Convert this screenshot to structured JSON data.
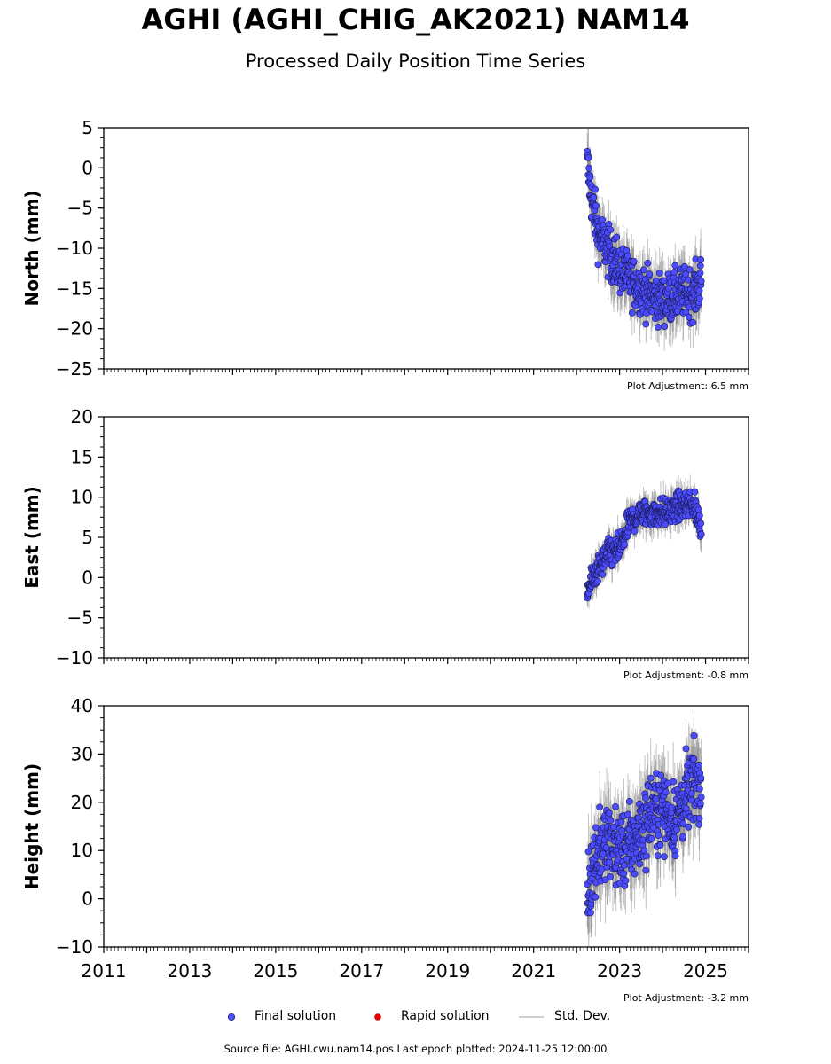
{
  "title": "AGHI (AGHI_CHIG_AK2021) NAM14",
  "subtitle": "Processed Daily Position Time Series",
  "source": "Source file: AGHI.cwu.nam14.pos  Last epoch plotted: 2024-11-25 12:00:00",
  "legend": {
    "final": "Final solution",
    "rapid": "Rapid solution",
    "std": "Std. Dev."
  },
  "colors": {
    "final": "#4b4bff",
    "rapid": "#e00000",
    "std": "#c0c0c0"
  },
  "chart_data": [
    {
      "type": "scatter",
      "ylabel": "North (mm)",
      "ylim": [
        -25,
        5
      ],
      "yticks": [
        5,
        0,
        -5,
        -10,
        -15,
        -20,
        -25
      ],
      "xlim": [
        2011,
        2026
      ],
      "adjustment": "Plot Adjustment: 6.5 mm",
      "series": [
        {
          "name": "Final solution",
          "points": [
            [
              2022.25,
              0.5
            ],
            [
              2022.35,
              -4
            ],
            [
              2022.5,
              -8
            ],
            [
              2022.75,
              -10.5
            ],
            [
              2023.0,
              -12.5
            ],
            [
              2023.25,
              -14
            ],
            [
              2023.5,
              -15
            ],
            [
              2023.75,
              -16
            ],
            [
              2024.0,
              -16.5
            ],
            [
              2024.25,
              -16
            ],
            [
              2024.5,
              -15.5
            ],
            [
              2024.75,
              -15.5
            ],
            [
              2024.9,
              -14
            ]
          ]
        }
      ]
    },
    {
      "type": "scatter",
      "ylabel": "East (mm)",
      "ylim": [
        -10,
        20
      ],
      "yticks": [
        20,
        15,
        10,
        5,
        0,
        -5,
        -10
      ],
      "xlim": [
        2011,
        2026
      ],
      "adjustment": "Plot Adjustment: -0.8 mm",
      "series": [
        {
          "name": "Final solution",
          "points": [
            [
              2022.25,
              -1.5
            ],
            [
              2022.5,
              1
            ],
            [
              2022.75,
              3
            ],
            [
              2023.0,
              3.5
            ],
            [
              2023.1,
              5
            ],
            [
              2023.25,
              7
            ],
            [
              2023.5,
              8
            ],
            [
              2023.75,
              8
            ],
            [
              2024.0,
              8
            ],
            [
              2024.25,
              8.5
            ],
            [
              2024.5,
              9
            ],
            [
              2024.75,
              9
            ],
            [
              2024.9,
              6
            ]
          ]
        }
      ]
    },
    {
      "type": "scatter",
      "ylabel": "Height (mm)",
      "ylim": [
        -10,
        40
      ],
      "yticks": [
        40,
        30,
        20,
        10,
        0,
        -10
      ],
      "xlim": [
        2011,
        2026
      ],
      "xticks": [
        "2011",
        "2013",
        "2015",
        "2017",
        "2019",
        "2021",
        "2023",
        "2025"
      ],
      "adjustment": "Plot Adjustment: -3.2 mm",
      "series": [
        {
          "name": "Final solution",
          "points": [
            [
              2022.25,
              2
            ],
            [
              2022.5,
              10
            ],
            [
              2022.75,
              12
            ],
            [
              2023.0,
              10
            ],
            [
              2023.25,
              11
            ],
            [
              2023.5,
              14
            ],
            [
              2023.75,
              18
            ],
            [
              2024.0,
              19
            ],
            [
              2024.25,
              16
            ],
            [
              2024.5,
              20
            ],
            [
              2024.75,
              24
            ],
            [
              2024.9,
              23
            ]
          ]
        }
      ]
    }
  ]
}
